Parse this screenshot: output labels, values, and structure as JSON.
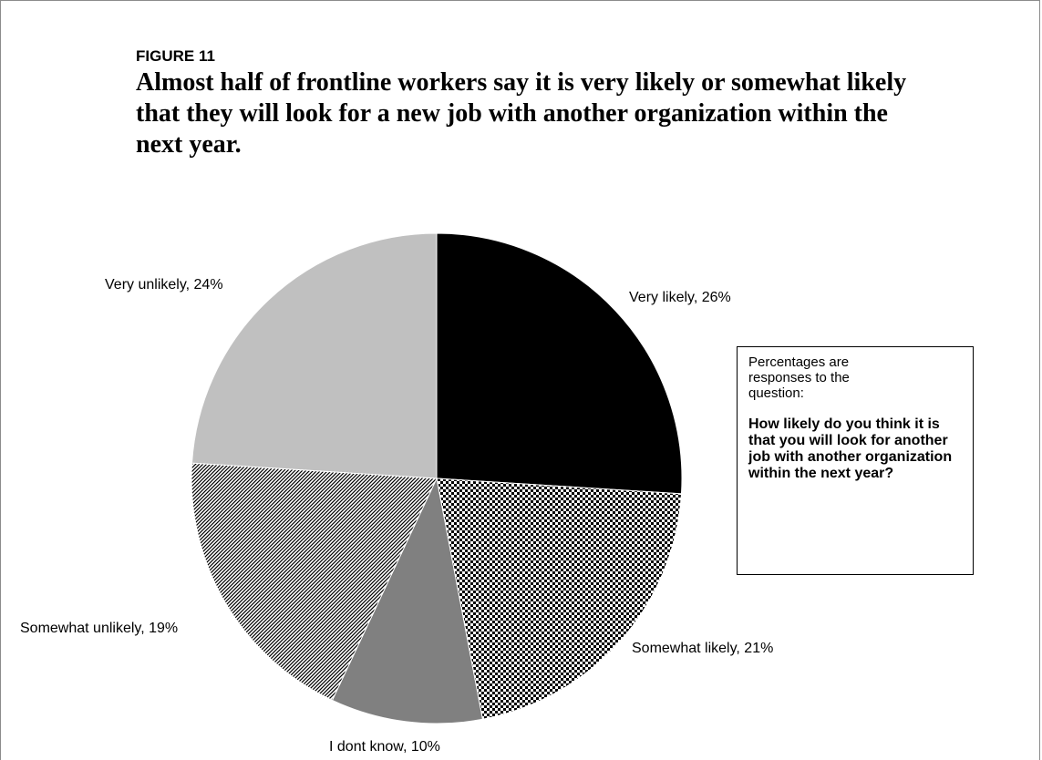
{
  "figure": {
    "label": "FIGURE 11",
    "title": "Almost half of frontline workers say it is very likely or somewhat likely that they will look for a new job with another organization within the next year."
  },
  "note": {
    "intro": "Percentages are responses to the question:",
    "question": "How likely do you think it is that you will look for another job with another organization within the next year?"
  },
  "chart_data": {
    "type": "pie",
    "title": "Almost half of frontline workers say it is very likely or somewhat likely that they will look for a new job with another organization within the next year.",
    "start_angle": "12 o'clock",
    "direction": "clockwise",
    "slices": [
      {
        "label": "Very likely, 26%",
        "name": "Very likely",
        "value": 26,
        "fill": "#000000"
      },
      {
        "label": "Somewhat likely, 21%",
        "name": "Somewhat likely",
        "value": 21,
        "fill": "checker-black-white"
      },
      {
        "label": "I dont know, 10%",
        "name": "I dont know",
        "value": 10,
        "fill": "#808080"
      },
      {
        "label": "Somewhat unlikely, 19%",
        "name": "Somewhat unlikely",
        "value": 19,
        "fill": "diagonal-hatch"
      },
      {
        "label": "Very unlikely, 24%",
        "name": "Very unlikely",
        "value": 24,
        "fill": "#c0c0c0"
      }
    ]
  }
}
